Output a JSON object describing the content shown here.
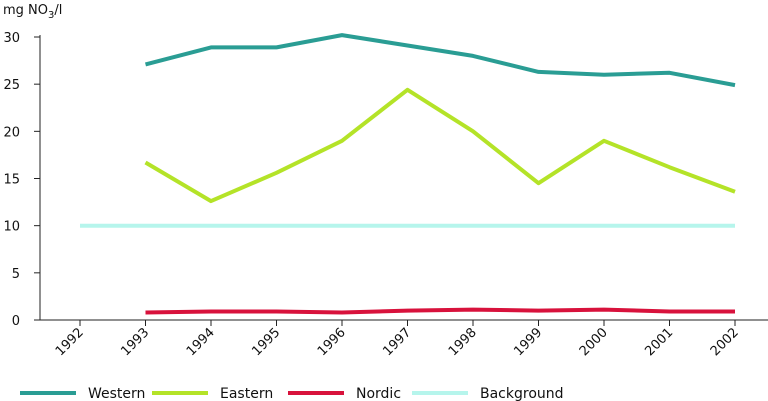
{
  "chart_data": {
    "type": "line",
    "ylabel": "mg NO",
    "ylabel_sub": "3",
    "ylabel_suffix": "/l",
    "ylim": [
      0,
      30
    ],
    "yticks": [
      0,
      5,
      10,
      15,
      20,
      25,
      30
    ],
    "x": [
      "1992",
      "1993",
      "1994",
      "1995",
      "1996",
      "1997",
      "1998",
      "1999",
      "2000",
      "2001",
      "2002"
    ],
    "grid": false,
    "legend_position": "bottom",
    "series": [
      {
        "name": "Western",
        "color": "#2a9d94",
        "values": [
          null,
          27.1,
          28.9,
          28.9,
          30.2,
          29.1,
          28.0,
          26.3,
          26.0,
          26.2,
          24.9
        ]
      },
      {
        "name": "Eastern",
        "color": "#b4e328",
        "values": [
          null,
          16.7,
          12.6,
          15.6,
          19.0,
          24.4,
          20.0,
          14.5,
          19.0,
          16.2,
          13.6
        ]
      },
      {
        "name": "Nordic",
        "color": "#d8123c",
        "values": [
          null,
          0.8,
          0.9,
          0.9,
          0.8,
          1.0,
          1.1,
          1.0,
          1.1,
          0.9,
          0.9
        ]
      },
      {
        "name": "Background",
        "color": "#b6f5ec",
        "values": [
          10,
          10,
          10,
          10,
          10,
          10,
          10,
          10,
          10,
          10,
          10
        ]
      }
    ]
  }
}
